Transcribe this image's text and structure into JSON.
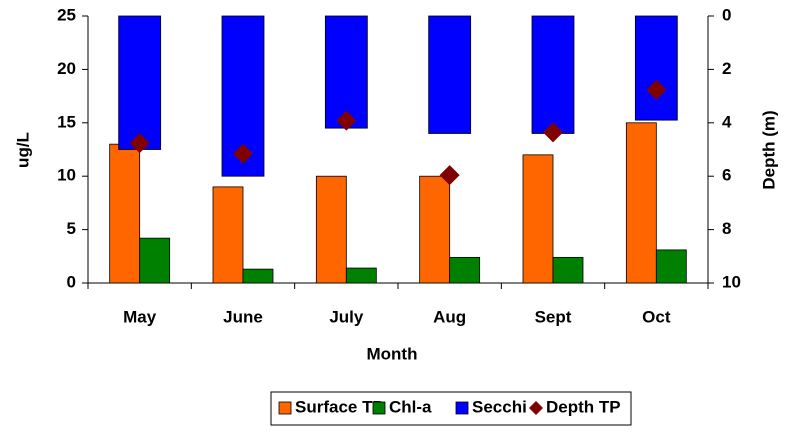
{
  "chart_data": {
    "type": "bar",
    "x_label": "Month",
    "y_label": "ug/L",
    "y2_label": "Depth (m)",
    "categories": [
      "May",
      "June",
      "July",
      "Aug",
      "Sept",
      "Oct"
    ],
    "series": [
      {
        "name": "Surface TP",
        "type": "bar",
        "color": "#ff6600",
        "values": [
          13,
          9,
          10,
          10,
          12,
          15
        ]
      },
      {
        "name": "Chl-a",
        "type": "bar",
        "color": "#008000",
        "values": [
          4.2,
          1.3,
          1.4,
          2.4,
          2.4,
          3.1
        ]
      },
      {
        "name": "Secchi",
        "type": "bar",
        "axis": "y2",
        "color": "#0000ff",
        "values": [
          5,
          6,
          4.2,
          4.4,
          4.4,
          3.9
        ]
      },
      {
        "name": "Depth TP",
        "type": "scatter",
        "marker": "diamond",
        "color": "#800000",
        "values": [
          13.1,
          12.1,
          15.2,
          10.1,
          14.1,
          18.1
        ]
      }
    ],
    "ylim": [
      0,
      25
    ],
    "yticks": [
      0,
      5,
      10,
      15,
      20,
      25
    ],
    "y2lim": [
      10,
      0
    ],
    "y2ticks": [
      0,
      2,
      4,
      6,
      8,
      10
    ],
    "legend": "bottom",
    "grid": false
  }
}
